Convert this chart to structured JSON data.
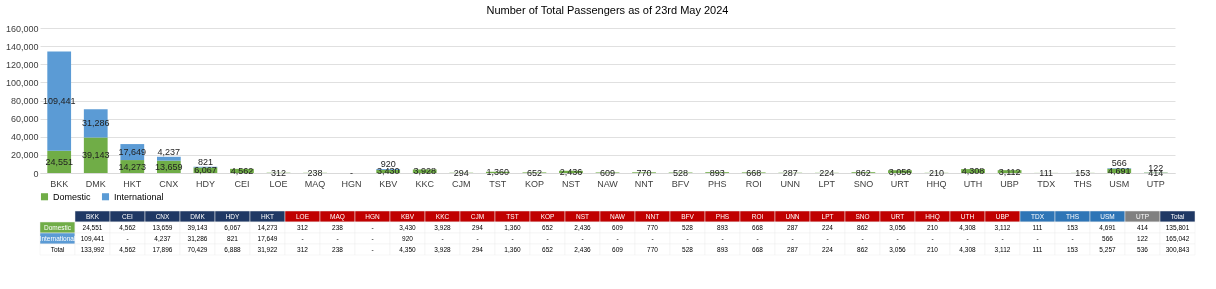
{
  "chart_data": [
    {
      "type": "bar",
      "title": "Number of Total Passengers as of 23rd May 2024",
      "stacked": true,
      "categories": [
        "BKK",
        "DMK",
        "HKT",
        "CNX",
        "HDY",
        "CEI",
        "LOE",
        "MAQ",
        "HGN",
        "KBV",
        "KKC",
        "CJM",
        "TST",
        "KOP",
        "NST",
        "NAW",
        "NNT",
        "BFV",
        "PHS",
        "ROI",
        "UNN",
        "LPT",
        "SNO",
        "URT",
        "HHQ",
        "UTH",
        "UBP",
        "TDX",
        "THS",
        "USM",
        "UTP"
      ],
      "series": [
        {
          "name": "Domestic",
          "color": "#70ad47",
          "values": [
            24551,
            39143,
            14273,
            13659,
            6067,
            4562,
            312,
            238,
            0,
            3430,
            3928,
            294,
            1360,
            652,
            2436,
            609,
            770,
            528,
            893,
            668,
            287,
            224,
            862,
            3056,
            210,
            4308,
            3112,
            111,
            153,
            4691,
            414
          ],
          "value_labels": [
            "24,551",
            "39,143",
            "14,273",
            "13,659",
            "6,067",
            "4,562",
            "312",
            "238",
            "-",
            "3,430",
            "3,928",
            "294",
            "1,360",
            "652",
            "2,436",
            "609",
            "770",
            "528",
            "893",
            "668",
            "287",
            "224",
            "862",
            "3,056",
            "210",
            "4,308",
            "3,112",
            "111",
            "153",
            "4,691",
            "414"
          ]
        },
        {
          "name": "International",
          "color": "#5b9bd5",
          "values": [
            109441,
            31286,
            17649,
            4237,
            821,
            null,
            null,
            null,
            null,
            920,
            null,
            null,
            null,
            null,
            null,
            null,
            null,
            null,
            null,
            null,
            null,
            null,
            null,
            null,
            null,
            null,
            null,
            null,
            null,
            566,
            122
          ],
          "value_labels": [
            "109,441",
            "31,286",
            "17,649",
            "4,237",
            "821",
            null,
            null,
            null,
            null,
            "920",
            null,
            null,
            null,
            null,
            null,
            null,
            null,
            null,
            null,
            null,
            null,
            null,
            null,
            null,
            null,
            null,
            null,
            null,
            null,
            "566",
            "122"
          ]
        }
      ],
      "ylim": [
        0,
        160000
      ],
      "yticks": [
        0,
        {
          "value": 20000,
          "label": "20,000"
        },
        {
          "value": 40000,
          "label": "40,000"
        },
        {
          "value": 60000,
          "label": "60,000"
        },
        {
          "value": 80000,
          "label": "80,000"
        },
        {
          "value": 100000,
          "label": "100,000"
        },
        {
          "value": 120000,
          "label": "120,000"
        },
        {
          "value": 140000,
          "label": "140,000"
        },
        {
          "value": 160000,
          "label": "160,000"
        }
      ],
      "grid": "y",
      "legend": "bottom"
    },
    {
      "type": "other",
      "categories": [
        "BKK",
        "CEI",
        "CNX",
        "DMK",
        "HDY",
        "HKT",
        "LOE",
        "MAQ",
        "HGN",
        "KBV",
        "KKC",
        "CJM",
        "TST",
        "KOP",
        "NST",
        "NAW",
        "NNT",
        "BFV",
        "PHS",
        "ROI",
        "UNN",
        "LPT",
        "SNO",
        "URT",
        "HHQ",
        "UTH",
        "UBP",
        "TDX",
        "THS",
        "USM",
        "UTP",
        "Total"
      ],
      "colors": [
        "#1f3864",
        "#1f3864",
        "#1f3864",
        "#1f3864",
        "#1f3864",
        "#1f3864",
        "#c00000",
        "#c00000",
        "#c00000",
        "#c00000",
        "#c00000",
        "#c00000",
        "#c00000",
        "#c00000",
        "#c00000",
        "#c00000",
        "#c00000",
        "#c00000",
        "#c00000",
        "#c00000",
        "#c00000",
        "#c00000",
        "#c00000",
        "#c00000",
        "#c00000",
        "#c00000",
        "#c00000",
        "#2e75b6",
        "#2e75b6",
        "#2e75b6",
        "#808080",
        "#1f3864"
      ],
      "y_categories": [
        "Domestic",
        "International",
        "Total"
      ],
      "cell_labels": [
        [
          "24,551",
          "4,562",
          "13,659",
          "39,143",
          "6,067",
          "14,273",
          "312",
          "238",
          "-",
          "3,430",
          "3,928",
          "294",
          "1,360",
          "652",
          "2,436",
          "609",
          "770",
          "528",
          "893",
          "668",
          "287",
          "224",
          "862",
          "3,056",
          "210",
          "4,308",
          "3,112",
          "111",
          "153",
          "4,691",
          "414",
          "135,801"
        ],
        [
          "109,441",
          "-",
          "4,237",
          "31,286",
          "821",
          "17,649",
          "-",
          "-",
          "-",
          "920",
          "-",
          "-",
          "-",
          "-",
          "-",
          "-",
          "-",
          "-",
          "-",
          "-",
          "-",
          "-",
          "-",
          "-",
          "-",
          "-",
          "-",
          "-",
          "-",
          "566",
          "122",
          "165,042"
        ],
        [
          "133,992",
          "4,562",
          "17,896",
          "70,429",
          "6,888",
          "31,922",
          "312",
          "238",
          "-",
          "4,350",
          "3,928",
          "294",
          "1,360",
          "652",
          "2,436",
          "609",
          "770",
          "528",
          "893",
          "668",
          "287",
          "224",
          "862",
          "3,056",
          "210",
          "4,308",
          "3,112",
          "111",
          "153",
          "5,257",
          "536",
          "300,843"
        ]
      ]
    }
  ]
}
